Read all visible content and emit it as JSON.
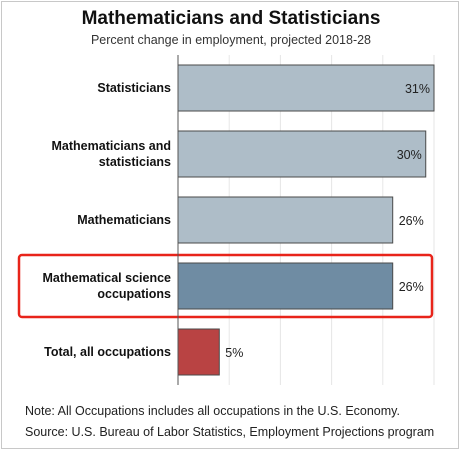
{
  "chart_data": {
    "type": "bar",
    "orientation": "horizontal",
    "title": "Mathematicians and Statisticians",
    "subtitle": "Percent change in employment, projected 2018-28",
    "categories": [
      [
        "Statisticians"
      ],
      [
        "Mathematicians and",
        "statisticians"
      ],
      [
        "Mathematicians"
      ],
      [
        "Mathematical science",
        "occupations"
      ],
      [
        "Total, all occupations"
      ]
    ],
    "values": [
      31,
      30,
      26,
      26,
      5
    ],
    "value_labels": [
      "31%",
      "30%",
      "26%",
      "26%",
      "5%"
    ],
    "bar_colors": [
      "#aebdc8",
      "#aebdc8",
      "#aebdc8",
      "#6f8ca3",
      "#b94343"
    ],
    "highlighted_index": 3,
    "highlight_color": "#e8241a",
    "xlim": [
      0,
      31
    ],
    "grid": true,
    "legend": "none"
  },
  "notes": {
    "note": "Note: All Occupations includes all occupations in the U.S. Economy.",
    "source": "Source: U.S. Bureau of Labor Statistics, Employment Projections program"
  }
}
